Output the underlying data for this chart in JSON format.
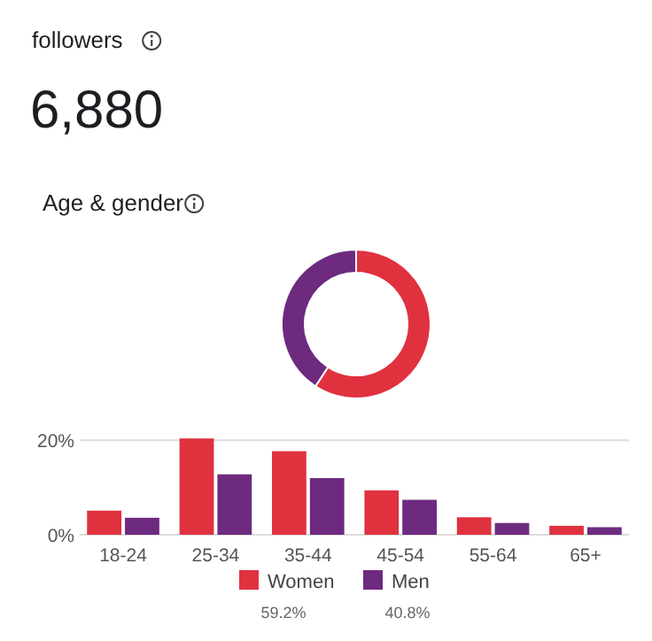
{
  "chart_data": [
    {
      "type": "other",
      "title": "followers",
      "annotations": [
        "6,880"
      ]
    },
    {
      "type": "donut",
      "title": "Age & gender",
      "categories": [
        "Women",
        "Men"
      ],
      "values": [
        59.2,
        40.8
      ],
      "value_labels": [
        "59.2%",
        "40.8%"
      ],
      "colors": [
        "#e0313f",
        "#6d2a7f"
      ],
      "legend": "bottom"
    },
    {
      "type": "bar",
      "categories": [
        "18-24",
        "25-34",
        "35-44",
        "45-54",
        "55-64",
        "65+"
      ],
      "series": [
        {
          "color": "#e0313f",
          "values": [
            5.1,
            20.4,
            17.7,
            9.4,
            3.7,
            1.9
          ]
        },
        {
          "color": "#6d2a7f",
          "values": [
            3.6,
            12.8,
            12.0,
            7.4,
            2.5,
            1.6
          ]
        }
      ],
      "ylim": [
        0,
        21
      ],
      "yticks": [
        {
          "value": 0,
          "label": "0%"
        },
        {
          "value": 20,
          "label": "20%"
        }
      ],
      "grid": "y"
    }
  ]
}
